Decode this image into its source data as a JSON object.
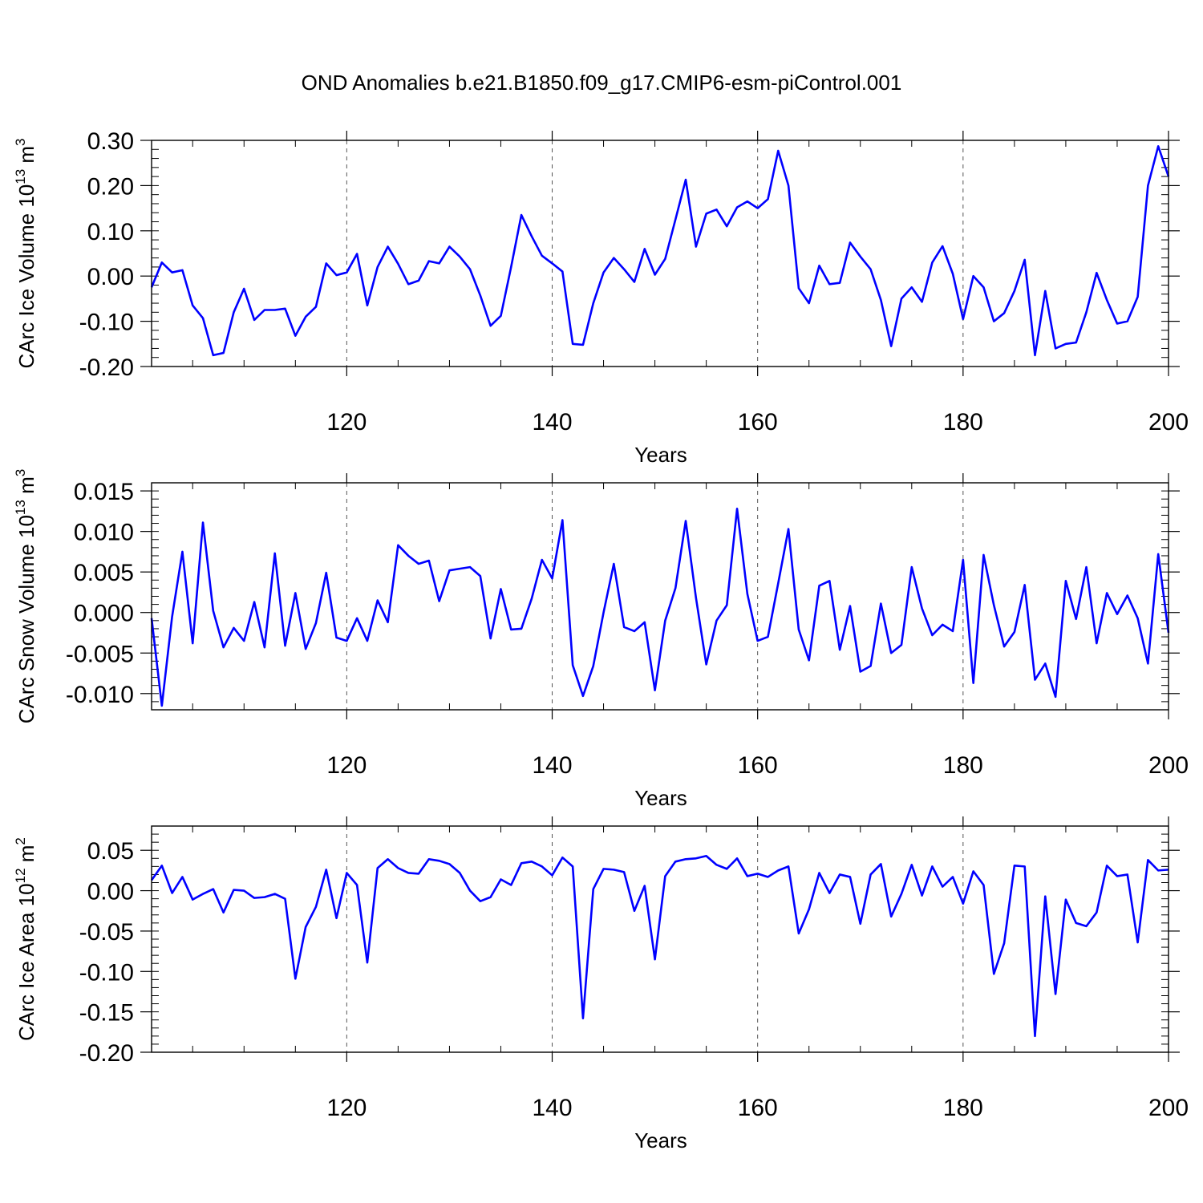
{
  "chart_data": [
    {
      "type": "line",
      "title": "OND Anomalies b.e21.B1850.f09_g17.CMIP6-esm-piControl.001",
      "xlabel": "Years",
      "ylabel": {
        "text": "CArc Ice Volume 10",
        "exp": "13",
        "unit": " m",
        "unit_exp": "3"
      },
      "xlim": [
        101,
        200
      ],
      "ylim": [
        -0.2,
        0.3
      ],
      "xticks": [
        120,
        140,
        160,
        180,
        200
      ],
      "xtick_labels": [
        "120",
        "140",
        "160",
        "180",
        "200"
      ],
      "yticks": [
        -0.2,
        -0.1,
        0.0,
        0.1,
        0.2,
        0.3
      ],
      "ytick_labels": [
        "-0.20",
        "-0.10",
        "0.00",
        "0.10",
        "0.20",
        "0.30"
      ],
      "grid": "vertical dashed at major x ticks",
      "series": [
        {
          "name": "CArc Ice Volume",
          "color": "#0000ff",
          "x_start": 101,
          "values": [
            -0.025,
            0.03,
            0.008,
            0.013,
            -0.065,
            -0.093,
            -0.175,
            -0.17,
            -0.08,
            -0.028,
            -0.097,
            -0.075,
            -0.075,
            -0.072,
            -0.132,
            -0.09,
            -0.068,
            0.028,
            0.002,
            0.008,
            0.049,
            -0.065,
            0.02,
            0.065,
            0.027,
            -0.018,
            -0.01,
            0.033,
            0.028,
            0.065,
            0.043,
            0.015,
            -0.043,
            -0.11,
            -0.088,
            0.02,
            0.135,
            0.088,
            0.045,
            0.028,
            0.01,
            -0.15,
            -0.152,
            -0.06,
            0.008,
            0.04,
            0.015,
            -0.013,
            0.06,
            0.003,
            0.038,
            0.125,
            0.213,
            0.065,
            0.138,
            0.147,
            0.11,
            0.152,
            0.165,
            0.15,
            0.17,
            0.277,
            0.2,
            -0.027,
            -0.06,
            0.023,
            -0.018,
            -0.015,
            0.074,
            0.043,
            0.015,
            -0.053,
            -0.155,
            -0.05,
            -0.025,
            -0.057,
            0.03,
            0.066,
            0.005,
            -0.095,
            0.0,
            -0.025,
            -0.1,
            -0.082,
            -0.033,
            0.036,
            -0.175,
            -0.033,
            -0.16,
            -0.15,
            -0.147,
            -0.08,
            0.007,
            -0.053,
            -0.105,
            -0.1,
            -0.046,
            0.2,
            0.287,
            0.22
          ]
        }
      ]
    },
    {
      "type": "line",
      "xlabel": "Years",
      "ylabel": {
        "text": "CArc Snow Volume 10",
        "exp": "13",
        "unit": " m",
        "unit_exp": "3"
      },
      "xlim": [
        101,
        200
      ],
      "ylim": [
        -0.012,
        0.016
      ],
      "xticks": [
        120,
        140,
        160,
        180,
        200
      ],
      "xtick_labels": [
        "120",
        "140",
        "160",
        "180",
        "200"
      ],
      "yticks": [
        -0.01,
        -0.005,
        0.0,
        0.005,
        0.01,
        0.015
      ],
      "ytick_labels": [
        "-0.010",
        "-0.005",
        "0.000",
        "0.005",
        "0.010",
        "0.015"
      ],
      "grid": "vertical dashed at major x ticks",
      "series": [
        {
          "name": "CArc Snow Volume",
          "color": "#0000ff",
          "x_start": 101,
          "values": [
            -0.0007,
            -0.0115,
            -0.0005,
            0.0075,
            -0.0038,
            0.0111,
            0.0002,
            -0.0043,
            -0.0019,
            -0.0035,
            0.0013,
            -0.0043,
            0.0073,
            -0.0041,
            0.0024,
            -0.0045,
            -0.0013,
            0.0049,
            -0.0031,
            -0.0035,
            -0.0007,
            -0.0035,
            0.0015,
            -0.0012,
            0.0083,
            0.007,
            0.006,
            0.0064,
            0.0014,
            0.0052,
            0.0054,
            0.0056,
            0.0045,
            -0.0032,
            0.0029,
            -0.0021,
            -0.002,
            0.0017,
            0.0065,
            0.0042,
            0.0114,
            -0.0065,
            -0.0103,
            -0.0066,
            0.0,
            0.006,
            -0.0018,
            -0.0023,
            -0.0012,
            -0.0096,
            -0.001,
            0.003,
            0.0113,
            0.0018,
            -0.0064,
            -0.001,
            0.0009,
            0.0128,
            0.0023,
            -0.0035,
            -0.003,
            0.0036,
            0.0103,
            -0.0021,
            -0.0059,
            0.0033,
            0.0039,
            -0.0046,
            0.0008,
            -0.0073,
            -0.0066,
            0.0011,
            -0.005,
            -0.004,
            0.0056,
            0.0005,
            -0.0028,
            -0.0015,
            -0.0023,
            0.0065,
            -0.0087,
            0.0071,
            0.0009,
            -0.0042,
            -0.0024,
            0.0034,
            -0.0083,
            -0.0063,
            -0.0104,
            0.0039,
            -0.0008,
            0.0056,
            -0.0038,
            0.0024,
            -0.0002,
            0.0021,
            -0.0007,
            -0.0063,
            0.0072,
            -0.0025
          ]
        }
      ]
    },
    {
      "type": "line",
      "xlabel": "Years",
      "ylabel": {
        "text": "CArc Ice Area 10",
        "exp": "12",
        "unit": " m",
        "unit_exp": "2"
      },
      "xlim": [
        101,
        200
      ],
      "ylim": [
        -0.2,
        0.08
      ],
      "xticks": [
        120,
        140,
        160,
        180,
        200
      ],
      "xtick_labels": [
        "120",
        "140",
        "160",
        "180",
        "200"
      ],
      "yticks": [
        -0.2,
        -0.15,
        -0.1,
        -0.05,
        0.0,
        0.05
      ],
      "ytick_labels": [
        "-0.20",
        "-0.15",
        "-0.10",
        "-0.05",
        "0.00",
        "0.05"
      ],
      "grid": "vertical dashed at major x ticks",
      "series": [
        {
          "name": "CArc Ice Area",
          "color": "#0000ff",
          "x_start": 101,
          "values": [
            0.013,
            0.031,
            -0.003,
            0.017,
            -0.011,
            -0.004,
            0.002,
            -0.027,
            0.001,
            0.0,
            -0.009,
            -0.008,
            -0.004,
            -0.01,
            -0.109,
            -0.045,
            -0.02,
            0.026,
            -0.034,
            0.022,
            0.007,
            -0.089,
            0.028,
            0.039,
            0.028,
            0.022,
            0.021,
            0.039,
            0.037,
            0.033,
            0.022,
            0.0,
            -0.013,
            -0.008,
            0.014,
            0.007,
            0.034,
            0.036,
            0.03,
            0.019,
            0.041,
            0.03,
            -0.158,
            0.002,
            0.027,
            0.026,
            0.023,
            -0.025,
            0.006,
            -0.085,
            0.018,
            0.036,
            0.039,
            0.04,
            0.043,
            0.032,
            0.027,
            0.04,
            0.018,
            0.021,
            0.017,
            0.025,
            0.03,
            -0.053,
            -0.023,
            0.022,
            -0.003,
            0.02,
            0.017,
            -0.041,
            0.02,
            0.033,
            -0.032,
            -0.004,
            0.032,
            -0.006,
            0.03,
            0.005,
            0.017,
            -0.016,
            0.024,
            0.007,
            -0.103,
            -0.065,
            0.031,
            0.03,
            -0.18,
            -0.007,
            -0.128,
            -0.011,
            -0.04,
            -0.044,
            -0.027,
            0.031,
            0.018,
            0.02,
            -0.064,
            0.038,
            0.025,
            0.026
          ]
        }
      ]
    }
  ]
}
